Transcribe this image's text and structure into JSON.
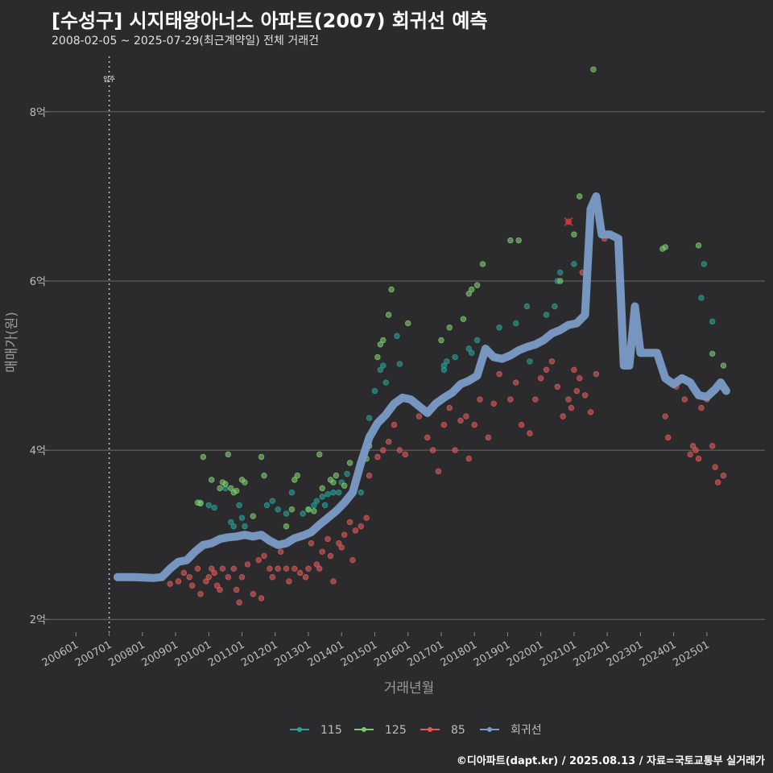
{
  "header": {
    "title": "[수성구] 시지태왕아너스 아파트(2007) 회귀선 예측",
    "subtitle": "2008-02-05 ~ 2025-07-29(최근계약일) 전체 거래건"
  },
  "footer": {
    "text": "©디아파트(dapt.kr) / 2025.08.13 / 자료=국토교통부 실거래가"
  },
  "chart_data": {
    "type": "scatter",
    "title": "[수성구] 시지태왕아너스 아파트(2007) 회귀선 예측",
    "subtitle": "2008-02-05 ~ 2025-07-29(최근계약일) 전체 거래건",
    "xlabel": "거래년월",
    "ylabel": "매매가(원)",
    "x_ticks": [
      "200601",
      "200701",
      "200801",
      "200901",
      "201001",
      "201101",
      "201201",
      "201301",
      "201401",
      "201501",
      "201601",
      "201701",
      "201801",
      "201901",
      "202001",
      "202101",
      "202201",
      "202301",
      "202401",
      "202501"
    ],
    "y_ticks": [
      {
        "value": 2,
        "label": "2억"
      },
      {
        "value": 4,
        "label": "4억"
      },
      {
        "value": 6,
        "label": "6억"
      },
      {
        "value": 8,
        "label": "8억"
      }
    ],
    "xlim": [
      "2005-03",
      "2026-10"
    ],
    "ylim": [
      1.85,
      8.75
    ],
    "annotation": {
      "label": "입주",
      "date": "2007-01"
    },
    "legend_position": "bottom",
    "legend": [
      {
        "name": "115",
        "color": "#2aa198"
      },
      {
        "name": "125",
        "color": "#7ecb6b"
      },
      {
        "name": "85",
        "color": "#e05a5a"
      },
      {
        "name": "회귀선",
        "color": "#7b9cc7"
      }
    ],
    "series": [
      {
        "name": "115",
        "color": "#2aa198",
        "points": [
          [
            "2009-10",
            3.38
          ],
          [
            "2010-01",
            3.35
          ],
          [
            "2010-03",
            3.32
          ],
          [
            "2010-07",
            3.55
          ],
          [
            "2010-09",
            3.15
          ],
          [
            "2010-10",
            3.1
          ],
          [
            "2010-12",
            3.35
          ],
          [
            "2011-01",
            3.2
          ],
          [
            "2011-02",
            3.1
          ],
          [
            "2011-10",
            3.35
          ],
          [
            "2011-12",
            3.4
          ],
          [
            "2012-02",
            3.3
          ],
          [
            "2012-05",
            3.25
          ],
          [
            "2012-07",
            3.5
          ],
          [
            "2012-11",
            3.25
          ],
          [
            "2013-01",
            3.3
          ],
          [
            "2013-03",
            3.35
          ],
          [
            "2013-04",
            3.4
          ],
          [
            "2013-06",
            3.45
          ],
          [
            "2013-07",
            3.35
          ],
          [
            "2013-08",
            3.48
          ],
          [
            "2013-10",
            3.5
          ],
          [
            "2013-12",
            3.5
          ],
          [
            "2014-01",
            3.62
          ],
          [
            "2014-03",
            3.72
          ],
          [
            "2014-08",
            3.5
          ],
          [
            "2014-11",
            4.38
          ],
          [
            "2015-01",
            4.7
          ],
          [
            "2015-03",
            4.95
          ],
          [
            "2015-04",
            5.0
          ],
          [
            "2015-05",
            4.8
          ],
          [
            "2015-09",
            5.35
          ],
          [
            "2015-10",
            5.02
          ],
          [
            "2017-02",
            4.95
          ],
          [
            "2017-02",
            5.0
          ],
          [
            "2017-03",
            5.05
          ],
          [
            "2017-06",
            5.1
          ],
          [
            "2017-11",
            5.2
          ],
          [
            "2017-12",
            5.15
          ],
          [
            "2018-02",
            5.3
          ],
          [
            "2018-09",
            5.1
          ],
          [
            "2018-10",
            5.45
          ],
          [
            "2019-04",
            5.5
          ],
          [
            "2019-08",
            5.7
          ],
          [
            "2019-09",
            5.05
          ],
          [
            "2020-03",
            5.6
          ],
          [
            "2020-06",
            5.7
          ],
          [
            "2020-07",
            6.0
          ],
          [
            "2020-08",
            6.1
          ],
          [
            "2021-01",
            6.2
          ],
          [
            "2024-11",
            5.8
          ],
          [
            "2024-12",
            6.2
          ],
          [
            "2025-03",
            5.52
          ]
        ]
      },
      {
        "name": "125",
        "color": "#7ecb6b",
        "points": [
          [
            "2009-09",
            3.38
          ],
          [
            "2009-10",
            3.37
          ],
          [
            "2009-11",
            3.92
          ],
          [
            "2010-02",
            3.65
          ],
          [
            "2010-05",
            3.55
          ],
          [
            "2010-06",
            3.62
          ],
          [
            "2010-07",
            3.6
          ],
          [
            "2010-08",
            3.95
          ],
          [
            "2010-09",
            3.55
          ],
          [
            "2010-10",
            3.5
          ],
          [
            "2010-11",
            3.52
          ],
          [
            "2011-01",
            3.65
          ],
          [
            "2011-02",
            3.62
          ],
          [
            "2011-05",
            3.22
          ],
          [
            "2011-08",
            3.92
          ],
          [
            "2011-09",
            3.7
          ],
          [
            "2012-05",
            3.1
          ],
          [
            "2012-07",
            3.3
          ],
          [
            "2012-08",
            3.65
          ],
          [
            "2012-09",
            3.7
          ],
          [
            "2013-01",
            3.3
          ],
          [
            "2013-03",
            3.28
          ],
          [
            "2013-05",
            3.95
          ],
          [
            "2013-06",
            3.55
          ],
          [
            "2013-09",
            3.65
          ],
          [
            "2013-10",
            3.62
          ],
          [
            "2013-11",
            3.7
          ],
          [
            "2014-02",
            3.58
          ],
          [
            "2014-04",
            3.85
          ],
          [
            "2014-10",
            3.9
          ],
          [
            "2014-11",
            4.05
          ],
          [
            "2015-02",
            5.1
          ],
          [
            "2015-03",
            5.25
          ],
          [
            "2015-04",
            5.3
          ],
          [
            "2015-06",
            5.6
          ],
          [
            "2015-07",
            5.9
          ],
          [
            "2016-01",
            5.5
          ],
          [
            "2017-01",
            5.3
          ],
          [
            "2017-04",
            5.45
          ],
          [
            "2017-09",
            5.55
          ],
          [
            "2017-11",
            5.85
          ],
          [
            "2017-12",
            5.9
          ],
          [
            "2018-02",
            5.95
          ],
          [
            "2018-04",
            6.2
          ],
          [
            "2019-02",
            6.48
          ],
          [
            "2019-05",
            6.48
          ],
          [
            "2020-08",
            6.0
          ],
          [
            "2021-01",
            6.55
          ],
          [
            "2021-03",
            7.0
          ],
          [
            "2021-08",
            8.5
          ],
          [
            "2023-09",
            6.38
          ],
          [
            "2023-10",
            6.4
          ],
          [
            "2024-10",
            6.42
          ],
          [
            "2025-03",
            5.14
          ],
          [
            "2025-07",
            5.0
          ]
        ]
      },
      {
        "name": "85",
        "color": "#e05a5a",
        "points": [
          [
            "2008-11",
            2.42
          ],
          [
            "2009-02",
            2.45
          ],
          [
            "2009-04",
            2.55
          ],
          [
            "2009-06",
            2.5
          ],
          [
            "2009-07",
            2.4
          ],
          [
            "2009-09",
            2.6
          ],
          [
            "2009-10",
            2.3
          ],
          [
            "2009-12",
            2.45
          ],
          [
            "2010-01",
            2.5
          ],
          [
            "2010-02",
            2.6
          ],
          [
            "2010-03",
            2.55
          ],
          [
            "2010-04",
            2.4
          ],
          [
            "2010-05",
            2.35
          ],
          [
            "2010-06",
            2.6
          ],
          [
            "2010-08",
            2.5
          ],
          [
            "2010-10",
            2.6
          ],
          [
            "2010-11",
            2.35
          ],
          [
            "2010-12",
            2.2
          ],
          [
            "2011-01",
            2.5
          ],
          [
            "2011-03",
            2.65
          ],
          [
            "2011-05",
            2.3
          ],
          [
            "2011-07",
            2.7
          ],
          [
            "2011-08",
            2.25
          ],
          [
            "2011-09",
            2.75
          ],
          [
            "2011-11",
            2.6
          ],
          [
            "2011-12",
            2.5
          ],
          [
            "2012-02",
            2.6
          ],
          [
            "2012-03",
            2.8
          ],
          [
            "2012-05",
            2.6
          ],
          [
            "2012-06",
            2.45
          ],
          [
            "2012-08",
            2.6
          ],
          [
            "2012-10",
            2.55
          ],
          [
            "2012-12",
            2.5
          ],
          [
            "2013-01",
            2.6
          ],
          [
            "2013-02",
            2.9
          ],
          [
            "2013-04",
            2.65
          ],
          [
            "2013-05",
            2.6
          ],
          [
            "2013-06",
            2.8
          ],
          [
            "2013-08",
            2.95
          ],
          [
            "2013-09",
            2.75
          ],
          [
            "2013-10",
            2.45
          ],
          [
            "2013-12",
            2.9
          ],
          [
            "2014-01",
            2.85
          ],
          [
            "2014-02",
            3.0
          ],
          [
            "2014-04",
            3.15
          ],
          [
            "2014-05",
            2.7
          ],
          [
            "2014-06",
            3.05
          ],
          [
            "2014-08",
            3.1
          ],
          [
            "2014-10",
            3.2
          ],
          [
            "2014-11",
            3.7
          ],
          [
            "2015-02",
            3.92
          ],
          [
            "2015-04",
            4.0
          ],
          [
            "2015-06",
            4.1
          ],
          [
            "2015-08",
            4.3
          ],
          [
            "2015-10",
            4.0
          ],
          [
            "2015-12",
            3.95
          ],
          [
            "2016-05",
            4.4
          ],
          [
            "2016-08",
            4.15
          ],
          [
            "2016-10",
            4.0
          ],
          [
            "2016-12",
            3.75
          ],
          [
            "2017-02",
            4.3
          ],
          [
            "2017-04",
            4.5
          ],
          [
            "2017-06",
            4.0
          ],
          [
            "2017-08",
            4.35
          ],
          [
            "2017-10",
            4.4
          ],
          [
            "2017-11",
            3.9
          ],
          [
            "2018-01",
            4.3
          ],
          [
            "2018-03",
            4.6
          ],
          [
            "2018-06",
            4.15
          ],
          [
            "2018-08",
            4.55
          ],
          [
            "2018-10",
            4.9
          ],
          [
            "2019-02",
            4.6
          ],
          [
            "2019-04",
            4.8
          ],
          [
            "2019-06",
            4.3
          ],
          [
            "2019-09",
            4.2
          ],
          [
            "2019-11",
            4.6
          ],
          [
            "2020-01",
            4.85
          ],
          [
            "2020-03",
            4.95
          ],
          [
            "2020-05",
            5.05
          ],
          [
            "2020-07",
            4.75
          ],
          [
            "2020-09",
            4.4
          ],
          [
            "2020-11",
            4.6
          ],
          [
            "2020-12",
            4.5
          ],
          [
            "2021-01",
            4.95
          ],
          [
            "2021-02",
            4.7
          ],
          [
            "2021-03",
            4.85
          ],
          [
            "2021-04",
            6.1
          ],
          [
            "2021-05",
            4.65
          ],
          [
            "2021-07",
            4.45
          ],
          [
            "2021-09",
            4.9
          ],
          [
            "2021-12",
            6.5
          ],
          [
            "2023-10",
            4.4
          ],
          [
            "2023-11",
            4.15
          ],
          [
            "2024-02",
            4.75
          ],
          [
            "2024-05",
            4.6
          ],
          [
            "2024-07",
            3.95
          ],
          [
            "2024-08",
            4.05
          ],
          [
            "2024-09",
            4.0
          ],
          [
            "2024-10",
            3.9
          ],
          [
            "2024-11",
            4.5
          ],
          [
            "2025-01",
            4.6
          ],
          [
            "2025-03",
            4.05
          ],
          [
            "2025-04",
            3.8
          ],
          [
            "2025-05",
            3.62
          ],
          [
            "2025-07",
            3.7
          ]
        ]
      }
    ],
    "cancelled_point": {
      "date": "2020-11",
      "value": 6.7,
      "series": "85"
    },
    "regression": {
      "name": "회귀선",
      "color": "#7b9cc7",
      "points": [
        [
          "2007-04",
          2.5
        ],
        [
          "2007-10",
          2.5
        ],
        [
          "2008-05",
          2.49
        ],
        [
          "2008-08",
          2.5
        ],
        [
          "2008-11",
          2.6
        ],
        [
          "2009-02",
          2.68
        ],
        [
          "2009-05",
          2.7
        ],
        [
          "2009-08",
          2.8
        ],
        [
          "2009-11",
          2.88
        ],
        [
          "2010-02",
          2.9
        ],
        [
          "2010-05",
          2.95
        ],
        [
          "2010-08",
          2.97
        ],
        [
          "2010-11",
          2.98
        ],
        [
          "2011-02",
          3.0
        ],
        [
          "2011-05",
          2.98
        ],
        [
          "2011-08",
          3.0
        ],
        [
          "2011-11",
          2.93
        ],
        [
          "2012-02",
          2.88
        ],
        [
          "2012-05",
          2.9
        ],
        [
          "2012-08",
          2.96
        ],
        [
          "2012-11",
          2.99
        ],
        [
          "2013-02",
          3.03
        ],
        [
          "2013-05",
          3.12
        ],
        [
          "2013-08",
          3.2
        ],
        [
          "2013-11",
          3.28
        ],
        [
          "2014-02",
          3.38
        ],
        [
          "2014-05",
          3.5
        ],
        [
          "2014-08",
          3.85
        ],
        [
          "2014-11",
          4.15
        ],
        [
          "2015-02",
          4.32
        ],
        [
          "2015-05",
          4.42
        ],
        [
          "2015-08",
          4.55
        ],
        [
          "2015-11",
          4.62
        ],
        [
          "2016-02",
          4.6
        ],
        [
          "2016-05",
          4.52
        ],
        [
          "2016-08",
          4.44
        ],
        [
          "2016-11",
          4.55
        ],
        [
          "2017-02",
          4.62
        ],
        [
          "2017-05",
          4.68
        ],
        [
          "2017-08",
          4.78
        ],
        [
          "2017-11",
          4.82
        ],
        [
          "2018-02",
          4.88
        ],
        [
          "2018-05",
          5.2
        ],
        [
          "2018-08",
          5.1
        ],
        [
          "2018-11",
          5.08
        ],
        [
          "2019-02",
          5.12
        ],
        [
          "2019-05",
          5.18
        ],
        [
          "2019-08",
          5.22
        ],
        [
          "2019-11",
          5.25
        ],
        [
          "2020-02",
          5.3
        ],
        [
          "2020-05",
          5.38
        ],
        [
          "2020-08",
          5.42
        ],
        [
          "2020-11",
          5.48
        ],
        [
          "2021-02",
          5.5
        ],
        [
          "2021-05",
          5.6
        ],
        [
          "2021-07",
          6.85
        ],
        [
          "2021-09",
          7.0
        ],
        [
          "2021-11",
          6.55
        ],
        [
          "2022-02",
          6.55
        ],
        [
          "2022-05",
          6.5
        ],
        [
          "2022-07",
          5.0
        ],
        [
          "2022-09",
          5.0
        ],
        [
          "2022-11",
          5.7
        ],
        [
          "2023-01",
          5.15
        ],
        [
          "2023-04",
          5.15
        ],
        [
          "2023-07",
          5.15
        ],
        [
          "2023-10",
          4.85
        ],
        [
          "2024-01",
          4.78
        ],
        [
          "2024-04",
          4.85
        ],
        [
          "2024-07",
          4.8
        ],
        [
          "2024-10",
          4.65
        ],
        [
          "2025-01",
          4.63
        ],
        [
          "2025-04",
          4.72
        ],
        [
          "2025-06",
          4.8
        ],
        [
          "2025-08",
          4.7
        ]
      ]
    }
  }
}
